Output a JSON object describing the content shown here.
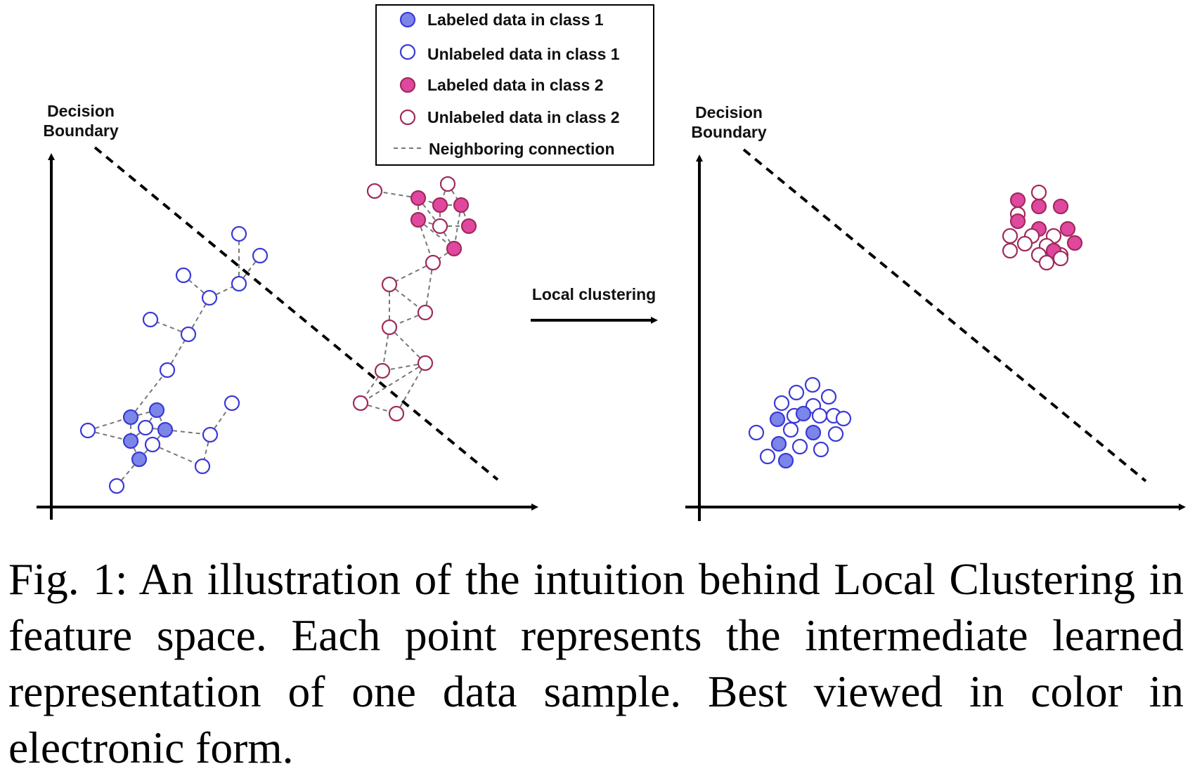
{
  "colors": {
    "class1": "#3a3ad6",
    "class1_fill": "#7b86e8",
    "class2": "#a02a5c",
    "class2_fill": "#e0489f",
    "edge": "#777777"
  },
  "legend": {
    "items": [
      {
        "label": "Labeled data in class 1",
        "kind": "labeled-class1"
      },
      {
        "label": "Unlabeled data in class 1",
        "kind": "unlabeled-class1"
      },
      {
        "label": "Labeled data in class 2",
        "kind": "labeled-class2"
      },
      {
        "label": "Unlabeled data in class 2",
        "kind": "unlabeled-class2"
      },
      {
        "label": "Neighboring connection",
        "kind": "connection"
      }
    ]
  },
  "left_panel": {
    "boundary_label": [
      "Decision",
      "Boundary"
    ]
  },
  "right_panel": {
    "boundary_label": [
      "Decision",
      "Boundary"
    ]
  },
  "transition": {
    "label": "Local clustering"
  },
  "caption": {
    "text": "Fig. 1: An illustration of the intuition behind Local Clustering in feature space. Each point represents the intermediate learned representation of one data sample. Best viewed in color in electronic form."
  }
}
